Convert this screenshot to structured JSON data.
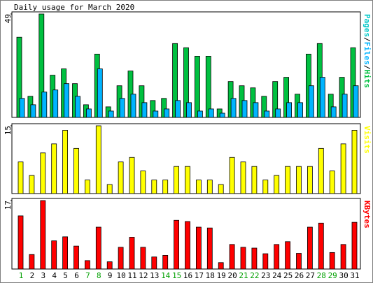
{
  "chart_data": [
    {
      "type": "bar",
      "title": "Daily usage for March 2020",
      "categories": [
        "1",
        "2",
        "3",
        "4",
        "5",
        "6",
        "7",
        "8",
        "9",
        "10",
        "11",
        "12",
        "13",
        "14",
        "15",
        "16",
        "17",
        "18",
        "19",
        "20",
        "21",
        "22",
        "23",
        "24",
        "25",
        "26",
        "27",
        "28",
        "29",
        "30",
        "31"
      ],
      "highlight": [
        0,
        6,
        7,
        13,
        14,
        20,
        21,
        27,
        28
      ],
      "highlight_color": "#00a000",
      "legend_separator": "/",
      "ylim": [
        0,
        49
      ],
      "yticks": [
        49
      ],
      "series": [
        {
          "name": "Pages",
          "color": "#00c8c8",
          "values": [
            0,
            0,
            0,
            0,
            0,
            0,
            0,
            0,
            0,
            0,
            0,
            0,
            0,
            0,
            0,
            0,
            0,
            0,
            0,
            0,
            0,
            0,
            0,
            0,
            0,
            0,
            0,
            0,
            0,
            0,
            0
          ]
        },
        {
          "name": "Files",
          "color": "#00b4ff",
          "values": [
            9,
            6,
            12,
            13,
            16,
            10,
            4,
            23,
            3,
            9,
            11,
            7,
            3,
            4,
            8,
            7,
            3,
            4,
            2,
            9,
            8,
            7,
            3,
            4,
            7,
            7,
            15,
            19,
            5,
            11,
            15
          ]
        },
        {
          "name": "Hits",
          "color": "#00c040",
          "values": [
            38,
            10,
            49,
            20,
            23,
            16,
            6,
            30,
            5,
            15,
            22,
            15,
            8,
            9,
            35,
            33,
            29,
            29,
            4,
            17,
            15,
            14,
            10,
            17,
            19,
            11,
            30,
            35,
            11,
            19,
            33
          ]
        }
      ]
    },
    {
      "type": "bar",
      "ylim": [
        0,
        15
      ],
      "yticks": [
        15
      ],
      "series": [
        {
          "name": "Visits",
          "color": "#ffff00",
          "values": [
            7,
            4,
            9,
            11,
            14,
            10,
            3,
            15,
            2,
            7,
            8,
            5,
            3,
            3,
            6,
            6,
            3,
            3,
            2,
            8,
            7,
            6,
            3,
            4,
            6,
            6,
            6,
            10,
            5,
            11,
            14
          ]
        }
      ]
    },
    {
      "type": "bar",
      "ylim": [
        0,
        17
      ],
      "yticks": [
        17
      ],
      "series": [
        {
          "name": "KBytes",
          "color": "#ff0000",
          "values": [
            13.2,
            3.6,
            17,
            7,
            8,
            5.7,
            2.1,
            10.4,
            1.8,
            5.4,
            7.9,
            5.4,
            3,
            3.4,
            12.1,
            11.8,
            10.4,
            10.2,
            1.6,
            6.1,
            5.4,
            5.2,
            3.8,
            6.1,
            6.8,
            3.9,
            10.4,
            11.4,
            4.1,
            6.1,
            11.6
          ]
        }
      ]
    }
  ]
}
